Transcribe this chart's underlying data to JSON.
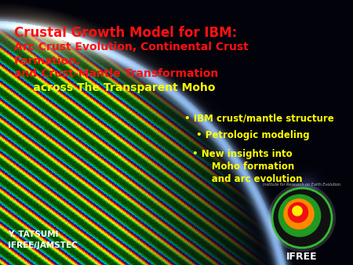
{
  "title_line1": "Crustal Growth Model for IBM:",
  "title_line2": "Arc Crust Evolution, Continental Crust",
  "title_line3": "Formation,",
  "title_line4": "and Crust-Mantle Transformation",
  "title_line5": "     across The Transparent Moho",
  "title_color": "#FF1111",
  "title_color2": "#FFFF00",
  "bullet_color": "#FFFF00",
  "bullet1": "• IBM crust/mantle structure",
  "bullet2": "• Petrologic modeling",
  "bullet3": "• New insights into",
  "bullet3b": "      Moho formation",
  "bullet3c": "      and arc evolution",
  "author_line1": "Y. TATSUMI",
  "author_line2": "IFREE/JAMSTEC",
  "author_color": "#FFFFFF",
  "bg_color": "#050508",
  "ifree_text": "IFREE",
  "space_color": "#080818",
  "glow_color": "#FFFFFF",
  "atm_color": "#99CCFF"
}
